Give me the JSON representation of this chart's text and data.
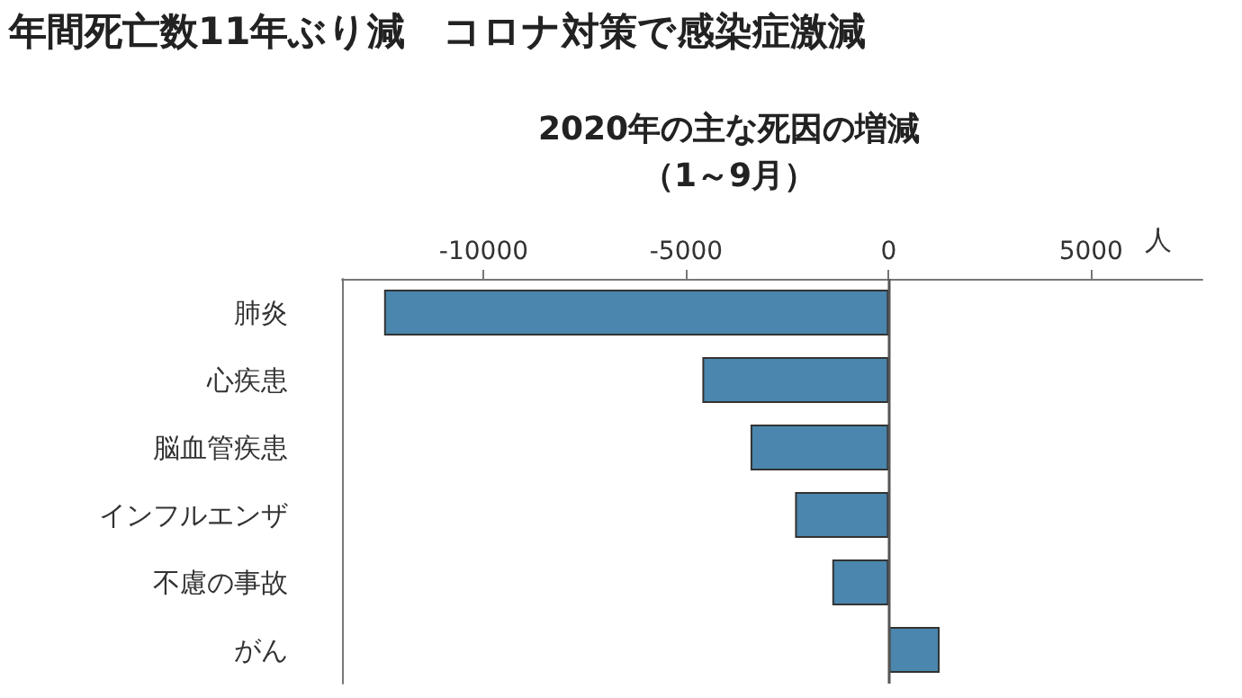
{
  "chart_data": {
    "type": "bar",
    "orientation": "horizontal",
    "title": "年間死亡数11年ぶり減　コロナ対策で感染症激減",
    "subtitle": "2020年の主な死因の増減",
    "annotations": [
      "（1～9月）"
    ],
    "xlabel": "人",
    "categories": [
      "肺炎",
      "心疾患",
      "脳血管疾患",
      "インフルエンザ",
      "不慮の事故",
      "がん"
    ],
    "series": [
      {
        "color": "#4a86ad",
        "values": [
          -12460,
          -4600,
          -3410,
          -2310,
          -1390,
          1260
        ]
      }
    ],
    "xlim": [
      -13500,
      7750
    ],
    "xticks": [
      -10000,
      -5000,
      0,
      5000
    ],
    "ref_lines": [
      {
        "axis": "x",
        "value": 0,
        "color": "#555555"
      }
    ],
    "grid": false
  }
}
